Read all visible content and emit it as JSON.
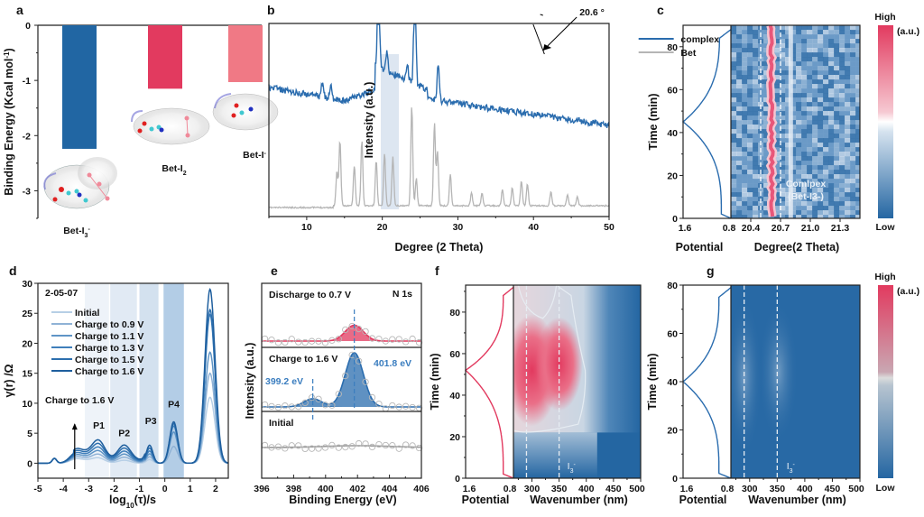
{
  "chart_data": [
    {
      "panel": "a",
      "type": "bar",
      "title": "",
      "xlabel": "",
      "ylabel": "Binding Energy (Kcal mol-1)",
      "ylim": [
        -3.5,
        0
      ],
      "yticks": [
        "0",
        "-1",
        "-2",
        "-3"
      ],
      "categories": [
        "Bet-I3-",
        "Bet-I2",
        "Bet-I-"
      ],
      "category_labels": [
        {
          "base": "Bet-I",
          "sub": "3",
          "sup": "-"
        },
        {
          "base": "Bet-I",
          "sub": "2",
          "sup": ""
        },
        {
          "base": "Bet-I",
          "sub": "",
          "sup": "-"
        }
      ],
      "values": [
        -2.24,
        -1.15,
        -1.03
      ],
      "colors": [
        "#2166a3",
        "#e23a5f",
        "#f07985"
      ]
    },
    {
      "panel": "b",
      "type": "line",
      "xlabel": "Degree (2 Theta)",
      "ylabel": "Intensity (a.u.)",
      "xlim": [
        5,
        50
      ],
      "xticks": [
        "10",
        "20",
        "30",
        "40",
        "50"
      ],
      "annotation": "20.6 °",
      "highlight_band": [
        19.8,
        22.2
      ],
      "series": [
        {
          "name": "complex",
          "color": "#2a6cae"
        },
        {
          "name": "Bet",
          "color": "#b5b5b5"
        }
      ],
      "bet_peaks": [
        14.0,
        14.4,
        16.3,
        17.3,
        19.2,
        20.3,
        21.4,
        23.9,
        24.5,
        26.9,
        27.3,
        29.0,
        31.8,
        33.2,
        35.9,
        37.2,
        38.4,
        39.2,
        42.3,
        44.5,
        45.8
      ],
      "complex_peaks": [
        12.1,
        13.2,
        19.5,
        20.6,
        23.3,
        24.3,
        27.4
      ]
    },
    {
      "panel": "c",
      "type": "heatmap",
      "left_xlabel": "Potential",
      "left_xticks": [
        "1.6",
        "0.8"
      ],
      "xlabel": "Degree(2 Theta)",
      "xticks": [
        "20.4",
        "20.7",
        "21.0",
        "21.3"
      ],
      "ylabel": "Time (min)",
      "ylim": [
        0,
        90
      ],
      "yticks": [
        "0",
        "20",
        "40",
        "60",
        "80"
      ],
      "dashed_lines_x": [
        20.5,
        20.7
      ],
      "annotation": [
        "Comlpex",
        "(Bet-I3-)"
      ],
      "colorbar": {
        "high": "High",
        "low": "Low",
        "unit": "(a.u.)"
      },
      "potential_curve_color": "#2a6cae"
    },
    {
      "panel": "d",
      "type": "line",
      "title": "2-05-07",
      "xlabel": "log10(τ)/s",
      "ylabel": "γ(r) /Ω",
      "xlim": [
        -5,
        2.5
      ],
      "ylim": [
        -2.5,
        30
      ],
      "xticks": [
        "-5",
        "-4",
        "-3",
        "-2",
        "-1",
        "0",
        "1",
        "2"
      ],
      "yticks": [
        "0",
        "5",
        "10",
        "15",
        "20",
        "25",
        "30"
      ],
      "legend": "upper-left",
      "arrow_label": "Charge to 1.6 V",
      "peak_labels": [
        "P1",
        "P2",
        "P3",
        "P4"
      ],
      "bands": [
        [
          -3.15,
          -2.2
        ],
        [
          -2.15,
          -1.1
        ],
        [
          -1.0,
          -0.25
        ],
        [
          -0.05,
          0.75
        ]
      ],
      "series": [
        {
          "name": "Initial",
          "peak_final": 11,
          "peak_p4": 2,
          "color": "#b7cfe6"
        },
        {
          "name": "Charge to 0.9 V",
          "peak_final": 15,
          "peak_p4": 2.8,
          "color": "#8fb2d6"
        },
        {
          "name": "Charge to 1.1 V",
          "peak_final": 18.5,
          "peak_p4": 5.2,
          "color": "#5f95c6"
        },
        {
          "name": "Charge to 1.3 V",
          "peak_final": 24.8,
          "peak_p4": 6.2,
          "color": "#3f7fbb"
        },
        {
          "name": "Charge to 1.5 V",
          "peak_final": 25.6,
          "peak_p4": 6.6,
          "color": "#2c6fae"
        },
        {
          "name": "Charge to 1.6 V",
          "peak_final": 29,
          "peak_p4": 6.9,
          "color": "#1f5f9e"
        }
      ]
    },
    {
      "panel": "e",
      "type": "line",
      "xlabel": "Binding Energy (eV)",
      "ylabel": "Intensity (a.u.)",
      "xlim": [
        396,
        406
      ],
      "xticks": [
        "396",
        "398",
        "400",
        "402",
        "404",
        "406"
      ],
      "element_label": "N 1s",
      "subpanels": [
        {
          "label": "Discharge to 0.7 V",
          "color": "#e23a5f",
          "peaks": [
            {
              "center": 401.8,
              "height": 0.25
            }
          ]
        },
        {
          "label": "Charge to 1.6 V",
          "color": "#2a6cae",
          "peaks": [
            {
              "center": 399.2,
              "height": 0.15
            },
            {
              "center": 401.8,
              "height": 1.0
            }
          ]
        },
        {
          "label": "Initial",
          "color": "#999999",
          "peaks": []
        }
      ],
      "peak_annotations": [
        "399.2 eV",
        "401.8 eV"
      ]
    },
    {
      "panel": "f",
      "type": "heatmap",
      "left_xlabel": "Potential",
      "left_xticks": [
        "1.6",
        "0.8"
      ],
      "xlabel": "Wavenumber (nm)",
      "xticks": [
        "300",
        "350",
        "400",
        "450",
        "500"
      ],
      "ylabel": "Time (min)",
      "ylim": [
        0,
        93
      ],
      "yticks": [
        "0",
        "20",
        "40",
        "60",
        "80"
      ],
      "dashed_lines_x": [
        290,
        350
      ],
      "annotation": "I3-",
      "potential_curve_color": "#e23a5f"
    },
    {
      "panel": "g",
      "type": "heatmap",
      "left_xlabel": "Potential",
      "left_xticks": [
        "1.6",
        "0.8"
      ],
      "xlabel": "Wavenumber (nm)",
      "xticks": [
        "300",
        "350",
        "400",
        "450",
        "500"
      ],
      "ylabel": "Time (min)",
      "ylim": [
        0,
        80
      ],
      "yticks": [
        "0",
        "20",
        "40",
        "60",
        "80"
      ],
      "dashed_lines_x": [
        290,
        350
      ],
      "annotation": "I3-",
      "colorbar": {
        "high": "High",
        "low": "Low",
        "unit": "(a.u.)"
      },
      "potential_curve_color": "#2a6cae"
    }
  ],
  "panel_letters": [
    "a",
    "b",
    "c",
    "d",
    "e",
    "f",
    "g"
  ]
}
